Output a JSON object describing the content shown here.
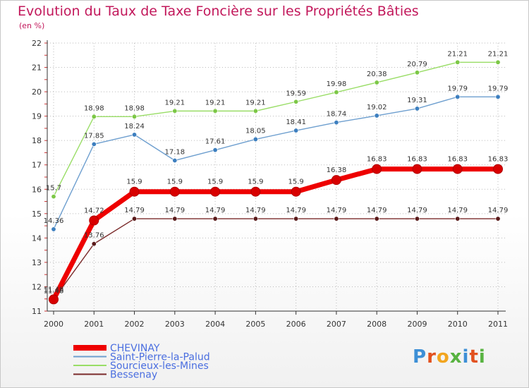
{
  "title": "Evolution du Taux de Taxe Foncière sur les Propriétés Bâties",
  "unit": "(en %)",
  "logo": {
    "letters": [
      "P",
      "r",
      "o",
      "x",
      "i",
      "t",
      "i"
    ]
  },
  "colors": {
    "title": "#c2185b",
    "grid": "#bbbbbb",
    "axis": "#333333"
  },
  "chart_data": {
    "type": "line",
    "title": "Evolution du Taux de Taxe Foncière sur les Propriétés Bâties",
    "ylabel": "(en %)",
    "xlabel": "",
    "ylim": [
      11,
      22
    ],
    "yticks": [
      11,
      12,
      13,
      14,
      15,
      16,
      17,
      18,
      19,
      20,
      21,
      22
    ],
    "grid": true,
    "legend": "bottom-left",
    "x": [
      "2000",
      "2001",
      "2002",
      "2003",
      "2004",
      "2005",
      "2006",
      "2007",
      "2008",
      "2009",
      "2010",
      "2011"
    ],
    "series": [
      {
        "name": "CHEVINAY",
        "color": "#ee0000",
        "marker": "#d80000",
        "thick": true,
        "values": [
          11.48,
          14.72,
          15.9,
          15.9,
          15.9,
          15.9,
          15.9,
          16.38,
          16.83,
          16.83,
          16.83,
          16.83
        ],
        "labels": [
          "11.48",
          "14.72",
          "15.9",
          "15.9",
          "15.9",
          "15.9",
          "15.9",
          "16.38",
          "16.83",
          "16.83",
          "16.83",
          "16.83"
        ]
      },
      {
        "name": "Saint-Pierre-la-Palud",
        "color": "#6e9fcf",
        "marker": "#3d7fbf",
        "thick": false,
        "values": [
          14.36,
          17.85,
          18.24,
          17.18,
          17.61,
          18.05,
          18.41,
          18.74,
          19.02,
          19.31,
          19.79,
          19.79
        ],
        "labels": [
          "14.36",
          "17.85",
          "18.24",
          "17.18",
          "17.61",
          "18.05",
          "18.41",
          "18.74",
          "19.02",
          "19.31",
          "19.79",
          "19.79"
        ]
      },
      {
        "name": "Sourcieux-les-Mines",
        "color": "#99dd66",
        "marker": "#7cc746",
        "thick": false,
        "values": [
          15.7,
          18.98,
          18.98,
          19.21,
          19.21,
          19.21,
          19.59,
          19.98,
          20.38,
          20.79,
          21.21,
          21.21
        ],
        "labels": [
          "15.7",
          "18.98",
          "18.98",
          "19.21",
          "19.21",
          "19.21",
          "19.59",
          "19.98",
          "20.38",
          "20.79",
          "21.21",
          "21.21"
        ]
      },
      {
        "name": "Bessenay",
        "color": "#7a2a2a",
        "marker": "#5a1a1a",
        "thick": false,
        "values": [
          11.48,
          13.76,
          14.79,
          14.79,
          14.79,
          14.79,
          14.79,
          14.79,
          14.79,
          14.79,
          14.79,
          14.79
        ],
        "labels": [
          "11.48",
          "13.76",
          "14.79",
          "14.79",
          "14.79",
          "14.79",
          "14.79",
          "14.79",
          "14.79",
          "14.79",
          "14.79",
          "14.79"
        ]
      }
    ],
    "legend_text_colors": [
      "#4a6ee0",
      "#4a6ee0",
      "#4a6ee0",
      "#4a6ee0"
    ]
  }
}
